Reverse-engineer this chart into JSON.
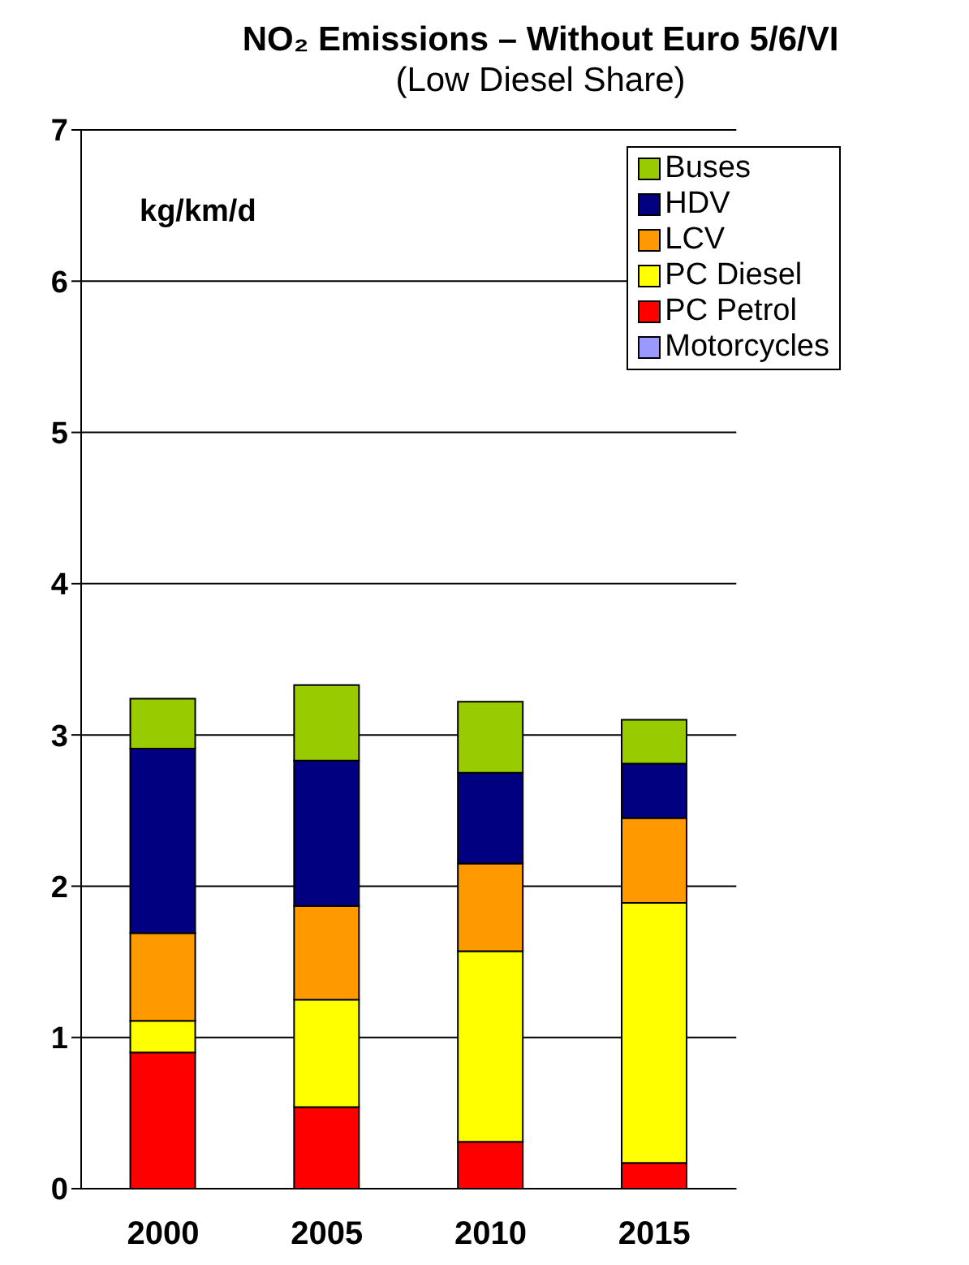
{
  "chart_data": {
    "type": "bar",
    "title": "NO₂ Emissions – Without Euro 5/6/VI",
    "subtitle": "(Low Diesel Share)",
    "ylabel": "kg/km/d",
    "categories": [
      "2000",
      "2005",
      "2010",
      "2015"
    ],
    "stacked": true,
    "series": [
      {
        "name": "Motorcycles",
        "color": "#9999ff",
        "values": [
          null,
          null,
          null,
          null
        ]
      },
      {
        "name": "PC Petrol",
        "color": "#ff0000",
        "values": [
          0.9,
          0.54,
          0.31,
          0.17
        ]
      },
      {
        "name": "PC Diesel",
        "color": "#ffff00",
        "values": [
          0.21,
          0.71,
          1.26,
          1.72
        ]
      },
      {
        "name": "LCV",
        "color": "#ff9900",
        "values": [
          0.58,
          0.62,
          0.58,
          0.56
        ]
      },
      {
        "name": "HDV",
        "color": "#000080",
        "values": [
          1.22,
          0.96,
          0.6,
          0.36
        ]
      },
      {
        "name": "Buses",
        "color": "#99cc00",
        "values": [
          0.33,
          0.5,
          0.47,
          0.29
        ]
      }
    ],
    "ylim": [
      0,
      7
    ],
    "yticks": [
      0,
      1,
      2,
      3,
      4,
      5,
      6,
      7
    ],
    "grid": "y",
    "legend": "top right"
  }
}
